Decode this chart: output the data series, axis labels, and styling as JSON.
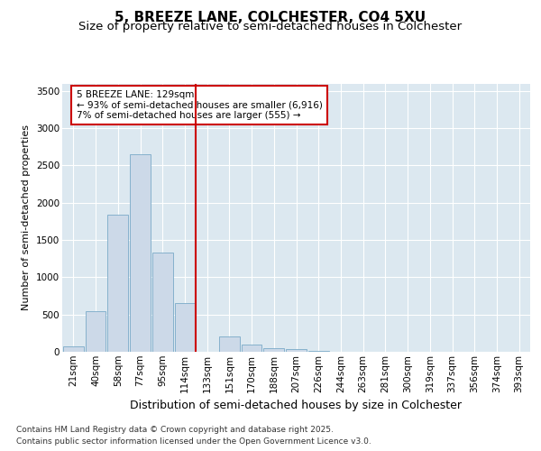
{
  "title": "5, BREEZE LANE, COLCHESTER, CO4 5XU",
  "subtitle": "Size of property relative to semi-detached houses in Colchester",
  "xlabel": "Distribution of semi-detached houses by size in Colchester",
  "ylabel": "Number of semi-detached properties",
  "categories": [
    "21sqm",
    "40sqm",
    "58sqm",
    "77sqm",
    "95sqm",
    "114sqm",
    "133sqm",
    "151sqm",
    "170sqm",
    "188sqm",
    "207sqm",
    "226sqm",
    "244sqm",
    "263sqm",
    "281sqm",
    "300sqm",
    "319sqm",
    "337sqm",
    "356sqm",
    "374sqm",
    "393sqm"
  ],
  "values": [
    70,
    540,
    1840,
    2650,
    1330,
    650,
    0,
    200,
    100,
    50,
    35,
    10,
    5,
    2,
    1,
    0,
    0,
    0,
    0,
    0,
    0
  ],
  "bar_color": "#ccd9e8",
  "bar_edge_color": "#7aaac8",
  "vline_color": "#cc0000",
  "vline_index": 6,
  "annotation_text": "5 BREEZE LANE: 129sqm\n← 93% of semi-detached houses are smaller (6,916)\n7% of semi-detached houses are larger (555) →",
  "annotation_box_color": "#ffffff",
  "annotation_box_edge": "#cc0000",
  "ylim": [
    0,
    3600
  ],
  "yticks": [
    0,
    500,
    1000,
    1500,
    2000,
    2500,
    3000,
    3500
  ],
  "plot_bg_color": "#dce8f0",
  "grid_color": "#ffffff",
  "footer_line1": "Contains HM Land Registry data © Crown copyright and database right 2025.",
  "footer_line2": "Contains public sector information licensed under the Open Government Licence v3.0.",
  "title_fontsize": 11,
  "subtitle_fontsize": 9.5,
  "xlabel_fontsize": 9,
  "ylabel_fontsize": 8,
  "tick_fontsize": 7.5,
  "annotation_fontsize": 7.5,
  "footer_fontsize": 6.5
}
